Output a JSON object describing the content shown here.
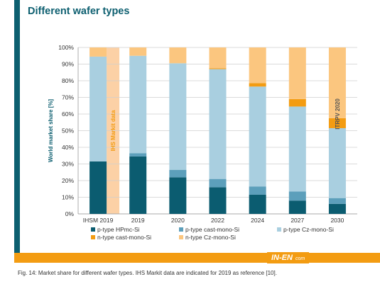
{
  "page": {
    "title": "Different wafer types",
    "caption": "Fig. 14: Market share for different wafer types. IHS Markit data are indicated for 2019 as reference [10].",
    "logo_text": "IN-EN",
    "logo_suffix": "com"
  },
  "chart_data": {
    "type": "bar",
    "stacked": true,
    "ylabel": "World market share [%]",
    "ylim": [
      0,
      100
    ],
    "ytick_labels": [
      "0%",
      "10%",
      "20%",
      "30%",
      "40%",
      "50%",
      "60%",
      "70%",
      "80%",
      "90%",
      "100%"
    ],
    "categories": [
      "IHSM 2019",
      "2019",
      "2020",
      "2022",
      "2024",
      "2027",
      "2030"
    ],
    "series": [
      {
        "name": "p-type HPmc-Si",
        "color": "#0b5c70",
        "values": [
          31.5,
          34.5,
          22,
          16,
          11.5,
          8,
          6
        ]
      },
      {
        "name": "p-type cast-mono-Si",
        "color": "#5c9fbb",
        "values": [
          0,
          2,
          4.5,
          5,
          5,
          5.5,
          3.5
        ]
      },
      {
        "name": "p-type Cz-mono-Si",
        "color": "#a9cfe0",
        "values": [
          63,
          58.5,
          64,
          66,
          60,
          51,
          42
        ]
      },
      {
        "name": "n-type cast-mono-Si",
        "color": "#f39c12",
        "values": [
          0,
          0,
          0,
          0.5,
          2,
          4.5,
          6
        ]
      },
      {
        "name": "n-type Cz-mono-Si",
        "color": "#fbc67f",
        "values": [
          5.5,
          5,
          9.5,
          12.5,
          21.5,
          31,
          42.5
        ]
      }
    ],
    "annotations": [
      {
        "text": "IHS Markit data",
        "category": "IHSM 2019",
        "y": 50,
        "color": "#f39c12"
      },
      {
        "text": "ITRPV 2020",
        "category": "2030",
        "y": 60,
        "color": "#555555"
      }
    ],
    "highlight_category": {
      "category": "IHSM 2019",
      "color": "#fcd1a6"
    },
    "grid": true,
    "legend_position": "bottom"
  }
}
